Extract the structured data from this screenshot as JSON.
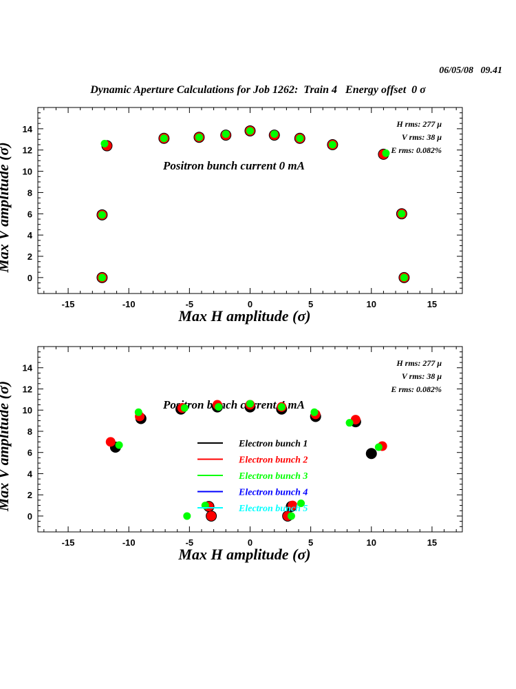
{
  "header": {
    "date": "06/05/08   09.41",
    "title": "Dynamic Aperture Calculations for Job 1262:  Train 4   Energy offset  0 σ"
  },
  "chart_data": [
    {
      "type": "scatter",
      "xlabel": "Max H amplitude (σ)",
      "ylabel": "Max V amplitude (σ)",
      "xlim": [
        -17.5,
        17.5
      ],
      "ylim": [
        -1.5,
        16
      ],
      "xticks": [
        -15,
        -10,
        -5,
        0,
        5,
        10,
        15
      ],
      "yticks": [
        0,
        2,
        4,
        6,
        8,
        10,
        12,
        14
      ],
      "annotation": "Positron bunch current  0 mA",
      "info": [
        "H rms: 277 μ",
        "V rms: 38 μ",
        "E rms: 0.082%"
      ],
      "series": [
        {
          "name": "Electron bunch 1",
          "color": "#000000",
          "points": [
            [
              -12.2,
              0
            ],
            [
              -12.2,
              5.9
            ],
            [
              -11.8,
              12.4
            ],
            [
              -7.1,
              13.1
            ],
            [
              -4.2,
              13.2
            ],
            [
              -2,
              13.4
            ],
            [
              0,
              13.8
            ],
            [
              2,
              13.4
            ],
            [
              4.1,
              13.1
            ],
            [
              6.8,
              12.5
            ],
            [
              11,
              11.6
            ],
            [
              12.5,
              6
            ],
            [
              12.7,
              0
            ]
          ]
        },
        {
          "name": "Electron bunch 2",
          "color": "#ff0000",
          "points": [
            [
              -12.2,
              0
            ],
            [
              -12.2,
              5.9
            ],
            [
              -11.8,
              12.4
            ],
            [
              -7.1,
              13.1
            ],
            [
              -4.2,
              13.2
            ],
            [
              -2,
              13.4
            ],
            [
              0,
              13.8
            ],
            [
              2,
              13.4
            ],
            [
              4.1,
              13.1
            ],
            [
              6.8,
              12.5
            ],
            [
              11,
              11.6
            ],
            [
              12.5,
              6
            ],
            [
              12.7,
              0
            ]
          ]
        },
        {
          "name": "Electron bunch 3",
          "color": "#00ff00",
          "points": [
            [
              -12.2,
              0
            ],
            [
              -12.2,
              5.9
            ],
            [
              -12,
              12.6
            ],
            [
              -7.1,
              13.1
            ],
            [
              -4.2,
              13.2
            ],
            [
              -2,
              13.5
            ],
            [
              0,
              13.8
            ],
            [
              2,
              13.5
            ],
            [
              4.1,
              13.1
            ],
            [
              6.8,
              12.5
            ],
            [
              11.2,
              11.7
            ],
            [
              12.5,
              6
            ],
            [
              12.7,
              0
            ]
          ]
        }
      ]
    },
    {
      "type": "scatter",
      "xlabel": "Max H amplitude (σ)",
      "ylabel": "Max V amplitude (σ)",
      "xlim": [
        -17.5,
        17.5
      ],
      "ylim": [
        -1.5,
        16
      ],
      "xticks": [
        -15,
        -10,
        -5,
        0,
        5,
        10,
        15
      ],
      "yticks": [
        0,
        2,
        4,
        6,
        8,
        10,
        12,
        14
      ],
      "annotation": "Positron bunch current  4 mA",
      "info": [
        "H rms: 277 μ",
        "V rms: 38 μ",
        "E rms: 0.082%"
      ],
      "series": [
        {
          "name": "Electron bunch 1",
          "color": "#000000",
          "points": [
            [
              -11.1,
              6.5
            ],
            [
              -9,
              9.2
            ],
            [
              -5.7,
              10.1
            ],
            [
              -2.7,
              10.3
            ],
            [
              0,
              10.3
            ],
            [
              2.6,
              10.1
            ],
            [
              5.4,
              9.4
            ],
            [
              8.7,
              8.9
            ],
            [
              10,
              5.9
            ],
            [
              -3.4,
              0.9
            ],
            [
              -3.2,
              0
            ],
            [
              3.1,
              0
            ],
            [
              3.4,
              0.9
            ]
          ]
        },
        {
          "name": "Electron bunch 2",
          "color": "#ff0000",
          "points": [
            [
              -11.5,
              7
            ],
            [
              -9.1,
              9.4
            ],
            [
              -5.6,
              10.2
            ],
            [
              -2.7,
              10.5
            ],
            [
              0,
              10.5
            ],
            [
              2.6,
              10.3
            ],
            [
              5.4,
              9.6
            ],
            [
              8.7,
              9.1
            ],
            [
              10.9,
              6.6
            ],
            [
              -3.4,
              0.9
            ],
            [
              -3.2,
              0
            ],
            [
              3.1,
              0
            ],
            [
              3.5,
              1
            ]
          ]
        },
        {
          "name": "Electron bunch 3",
          "color": "#00ff00",
          "points": [
            [
              -10.8,
              6.7
            ],
            [
              -9.2,
              9.8
            ],
            [
              -5.4,
              10.2
            ],
            [
              -2.6,
              10.3
            ],
            [
              0,
              10.6
            ],
            [
              2.6,
              10.3
            ],
            [
              5.3,
              9.8
            ],
            [
              8.2,
              8.8
            ],
            [
              10.6,
              6.5
            ],
            [
              -5.2,
              0
            ],
            [
              -3.7,
              1
            ],
            [
              3.4,
              0
            ],
            [
              4.2,
              1.2
            ]
          ]
        },
        {
          "name": "Electron bunch 4",
          "color": "#0000ff",
          "points": []
        },
        {
          "name": "Electron bunch 5",
          "color": "#00ffff",
          "points": []
        }
      ]
    }
  ]
}
